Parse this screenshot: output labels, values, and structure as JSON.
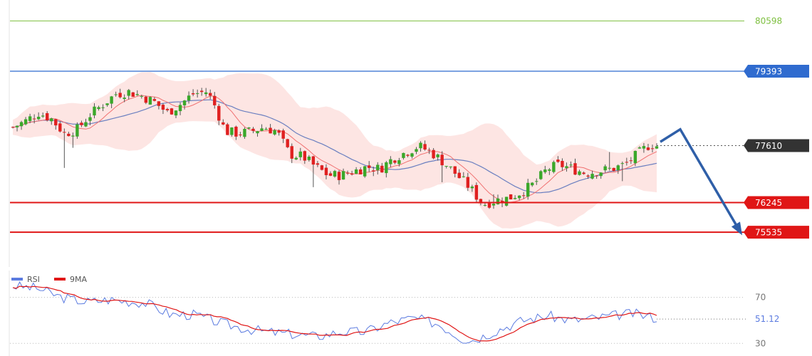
{
  "chart_data": [
    {
      "type": "candlestick",
      "ylim": [
        74700,
        81100
      ],
      "levels": [
        {
          "name": "target",
          "value": 80598,
          "label": "80598",
          "color": "#7dbf3f",
          "style": "plain"
        },
        {
          "name": "resistance",
          "value": 79393,
          "label": "79393",
          "color": "#2f6bcf",
          "style": "tag"
        },
        {
          "name": "current",
          "value": 77610,
          "label": "77610",
          "color": "#333333",
          "style": "tag-dark"
        },
        {
          "name": "support-1",
          "value": 76245,
          "label": "76245",
          "color": "#e01616",
          "style": "tag"
        },
        {
          "name": "support-2",
          "value": 75535,
          "label": "75535",
          "color": "#e01616",
          "style": "tag"
        }
      ],
      "projection": [
        {
          "t": 0,
          "value": 77700
        },
        {
          "t": 1,
          "value": 78000
        },
        {
          "t": 2,
          "value": 75520
        }
      ],
      "colors": {
        "up": "#3aa82a",
        "down": "#e02020",
        "ma_fast": "#f07070",
        "ma_slow": "#6a7fc0",
        "band": "#fbd3d0",
        "projection": "#2f5fa8"
      }
    },
    {
      "type": "line",
      "ylim": [
        24,
        84
      ],
      "ticks": [
        {
          "value": 70,
          "label": "70"
        },
        {
          "value": 30,
          "label": "30"
        }
      ],
      "current_label": "51.12",
      "current_value": 51.12,
      "legend": [
        {
          "name": "RSI",
          "color": "#5b7be0"
        },
        {
          "name": "9MA",
          "color": "#e01616"
        }
      ]
    }
  ]
}
